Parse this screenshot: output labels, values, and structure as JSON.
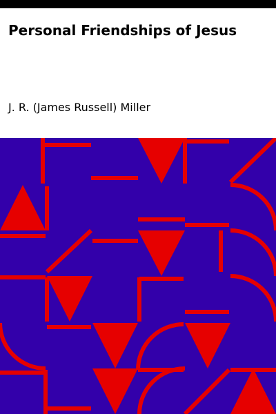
{
  "book": {
    "title": "Personal Friendships of Jesus",
    "author": "J. R. (James Russell) Miller"
  },
  "colors": {
    "background": "#ffffff",
    "top_strip": "#000000",
    "pattern_background": "#3300aa",
    "pattern_shapes": "#e60000",
    "text": "#000000"
  }
}
